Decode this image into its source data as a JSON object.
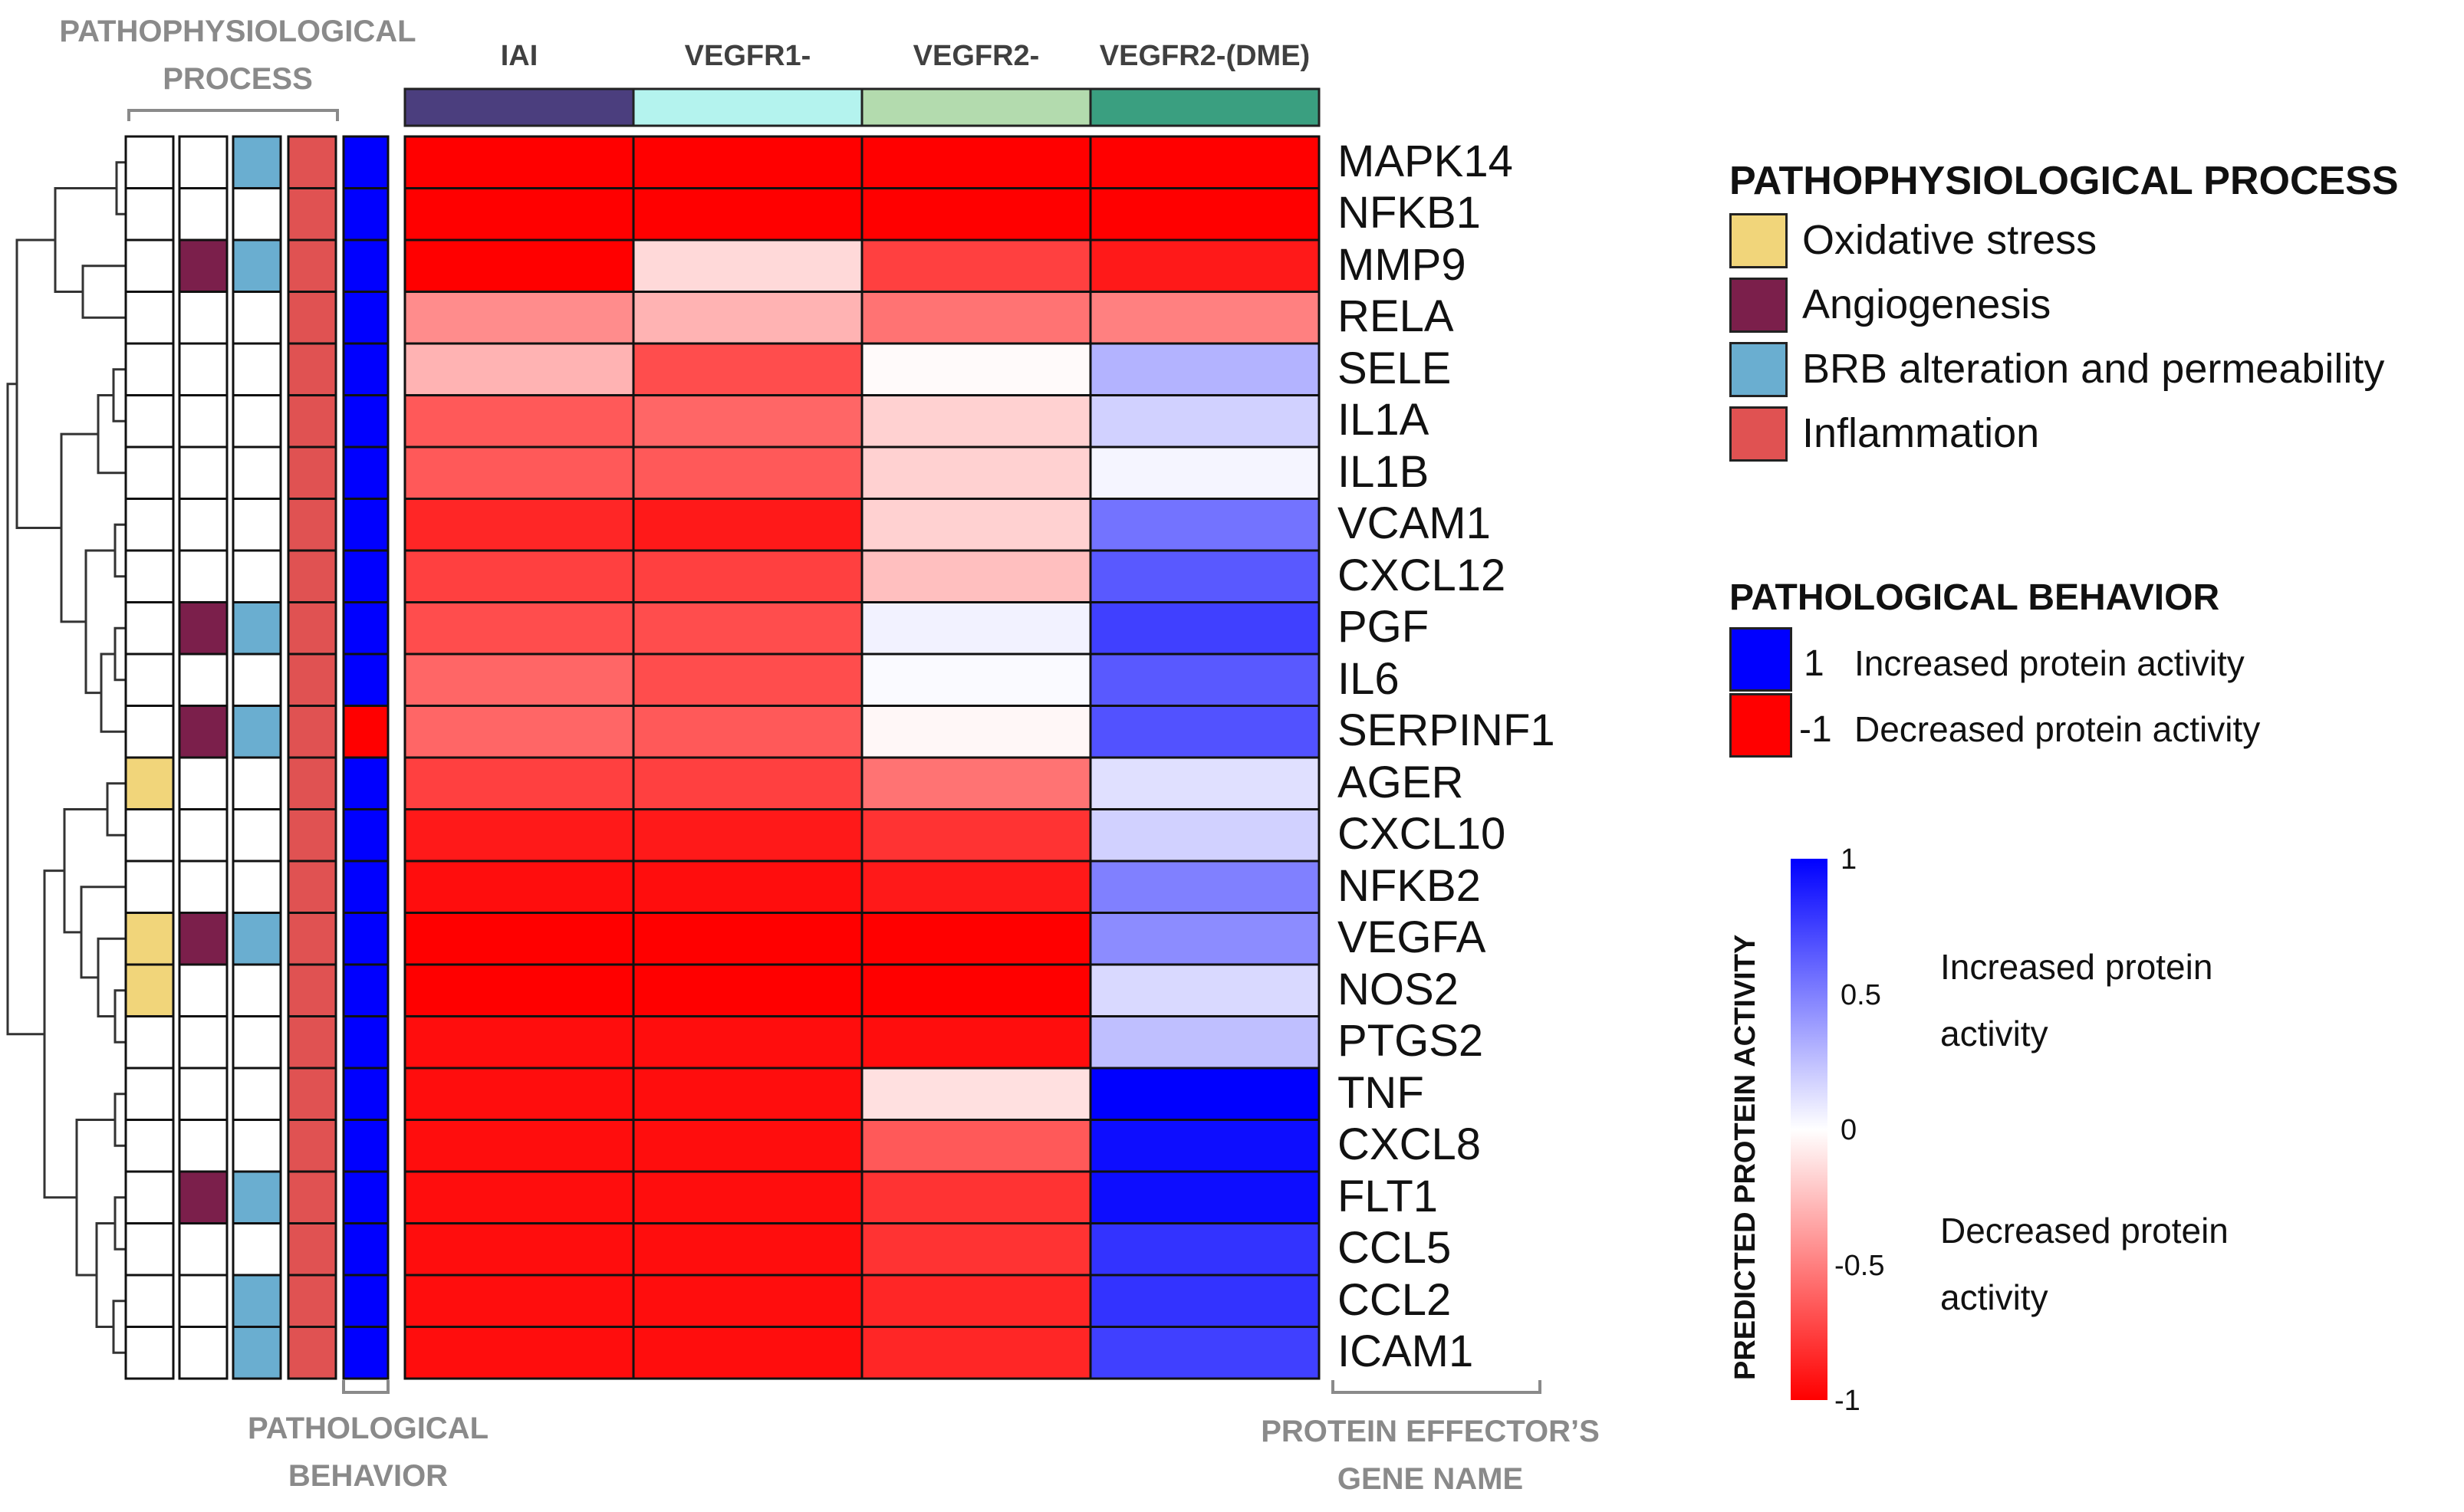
{
  "chart_data": {
    "type": "heatmap",
    "columns": [
      "IAI",
      "VEGFR1-",
      "VEGFR2-",
      "VEGFR2-(DME)"
    ],
    "column_colors": [
      "#4b3e7e",
      "#b4f3ee",
      "#b3dbae",
      "#3a9f80"
    ],
    "rows": [
      "MAPK14",
      "NFKB1",
      "MMP9",
      "RELA",
      "SELE",
      "IL1A",
      "IL1B",
      "VCAM1",
      "CXCL12",
      "PGF",
      "IL6",
      "SERPINF1",
      "AGER",
      "CXCL10",
      "NFKB2",
      "VEGFA",
      "NOS2",
      "PTGS2",
      "TNF",
      "CXCL8",
      "FLT1",
      "CCL5",
      "CCL2",
      "ICAM1"
    ],
    "values": [
      [
        -1.0,
        -1.0,
        -1.0,
        -1.0
      ],
      [
        -1.0,
        -1.0,
        -1.0,
        -1.0
      ],
      [
        -1.0,
        -0.15,
        -0.75,
        -0.9
      ],
      [
        -0.45,
        -0.3,
        -0.55,
        -0.5
      ],
      [
        -0.3,
        -0.7,
        -0.02,
        0.3
      ],
      [
        -0.65,
        -0.6,
        -0.18,
        0.18
      ],
      [
        -0.65,
        -0.65,
        -0.18,
        0.04
      ],
      [
        -0.85,
        -0.9,
        -0.18,
        0.55
      ],
      [
        -0.75,
        -0.75,
        -0.25,
        0.65
      ],
      [
        -0.7,
        -0.7,
        0.05,
        0.75
      ],
      [
        -0.6,
        -0.7,
        0.02,
        0.65
      ],
      [
        -0.6,
        -0.65,
        -0.03,
        0.68
      ],
      [
        -0.75,
        -0.75,
        -0.55,
        0.12
      ],
      [
        -0.9,
        -0.9,
        -0.8,
        0.18
      ],
      [
        -0.95,
        -0.95,
        -0.9,
        0.5
      ],
      [
        -1.0,
        -1.0,
        -1.0,
        0.45
      ],
      [
        -1.0,
        -1.0,
        -1.0,
        0.15
      ],
      [
        -0.95,
        -0.95,
        -0.95,
        0.25
      ],
      [
        -0.95,
        -0.95,
        -0.12,
        1.0
      ],
      [
        -0.95,
        -0.95,
        -0.65,
        0.95
      ],
      [
        -0.95,
        -0.95,
        -0.8,
        0.95
      ],
      [
        -0.95,
        -0.95,
        -0.8,
        0.8
      ],
      [
        -0.95,
        -0.95,
        -0.85,
        0.8
      ],
      [
        -0.95,
        -0.95,
        -0.85,
        0.75
      ]
    ],
    "process_annotations": {
      "order": [
        "oxidative_stress",
        "angiogenesis",
        "brb",
        "inflammation"
      ],
      "colors": {
        "oxidative_stress": "#f1d57a",
        "angiogenesis": "#7b1f4b",
        "brb": "#6aaed0",
        "inflammation": "#e05252"
      },
      "rows": [
        [
          0,
          0,
          1,
          1
        ],
        [
          0,
          0,
          0,
          1
        ],
        [
          0,
          1,
          1,
          1
        ],
        [
          0,
          0,
          0,
          1
        ],
        [
          0,
          0,
          0,
          1
        ],
        [
          0,
          0,
          0,
          1
        ],
        [
          0,
          0,
          0,
          1
        ],
        [
          0,
          0,
          0,
          1
        ],
        [
          0,
          0,
          0,
          1
        ],
        [
          0,
          1,
          1,
          1
        ],
        [
          0,
          0,
          0,
          1
        ],
        [
          0,
          1,
          1,
          1
        ],
        [
          1,
          0,
          0,
          1
        ],
        [
          0,
          0,
          0,
          1
        ],
        [
          0,
          0,
          0,
          1
        ],
        [
          1,
          1,
          1,
          1
        ],
        [
          1,
          0,
          0,
          1
        ],
        [
          0,
          0,
          0,
          1
        ],
        [
          0,
          0,
          0,
          1
        ],
        [
          0,
          0,
          0,
          1
        ],
        [
          0,
          1,
          1,
          1
        ],
        [
          0,
          0,
          0,
          1
        ],
        [
          0,
          0,
          1,
          1
        ],
        [
          0,
          0,
          1,
          1
        ]
      ]
    },
    "pathological_behavior": [
      1,
      1,
      1,
      1,
      1,
      1,
      1,
      1,
      1,
      1,
      1,
      -1,
      1,
      1,
      1,
      1,
      1,
      1,
      1,
      1,
      1,
      1,
      1,
      1
    ],
    "colorscale": {
      "min": -1,
      "max": 1,
      "low_color": "#ff0000",
      "mid_color": "#ffffff",
      "high_color": "#0000ff",
      "ticks": [
        "1",
        "0.5",
        "0",
        "-0.5",
        "-1"
      ]
    },
    "dendrogram": "hierarchical clustering of rows (left)"
  },
  "labels": {
    "pathophysiological_process_line1": "PATHOPHYSIOLOGICAL",
    "pathophysiological_process_line2": "PROCESS",
    "pathological_behavior_line1": "PATHOLOGICAL",
    "pathological_behavior_line2": "BEHAVIOR",
    "protein_effector_line1": "PROTEIN EFFECTOR’S",
    "protein_effector_line2": "GENE NAME"
  },
  "legend": {
    "process_title": "PATHOPHYSIOLOGICAL PROCESS",
    "process_items": [
      {
        "label": "Oxidative stress",
        "color": "#f1d57a"
      },
      {
        "label": "Angiogenesis",
        "color": "#7b1f4b"
      },
      {
        "label": "BRB alteration and permeability",
        "color": "#6aaed0"
      },
      {
        "label": "Inflammation",
        "color": "#e05252"
      }
    ],
    "behavior_title": "PATHOLOGICAL BEHAVIOR",
    "behavior_items": [
      {
        "value": "1",
        "label": "Increased protein activity",
        "color": "#0000ff"
      },
      {
        "value": "-1",
        "label": "Decreased protein activity",
        "color": "#ff0000"
      }
    ],
    "colorbar_title": "PREDICTED PROTEIN ACTIVITY",
    "colorbar_increased": "Increased protein activity",
    "colorbar_decreased": "Decreased protein activity"
  }
}
